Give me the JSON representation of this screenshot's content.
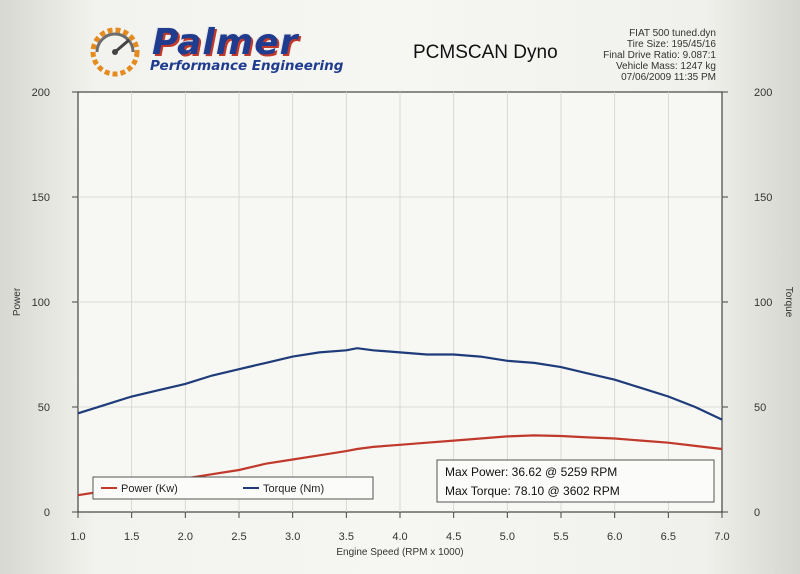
{
  "header": {
    "brand": "Palmer",
    "brand_subtitle": "Performance Engineering",
    "title": "PCMSCAN Dyno",
    "meta": [
      "FIAT 500 tuned.dyn",
      "Tire Size: 195/45/16",
      "Final Drive Ratio: 9.087:1",
      "Vehicle Mass: 1247 kg",
      "07/06/2009 11:35 PM"
    ]
  },
  "colors": {
    "power": "#c0392b",
    "torque": "#1f3c7a",
    "logo_orange": "#e58a1f",
    "brand_blue": "#1f3c8f"
  },
  "chart_data": {
    "type": "line",
    "title": "",
    "xlabel": "Engine Speed (RPM x 1000)",
    "ylabel": "Power",
    "y2label": "Torque",
    "xlim": [
      1.0,
      7.0
    ],
    "ylim": [
      0,
      200
    ],
    "y2lim": [
      0,
      200
    ],
    "x_ticks": [
      "1.0",
      "1.5",
      "2.0",
      "2.5",
      "3.0",
      "3.5",
      "4.0",
      "4.5",
      "5.0",
      "5.5",
      "6.0",
      "6.5",
      "7.0"
    ],
    "y_ticks": [
      "0",
      "50",
      "100",
      "150",
      "200"
    ],
    "grid": true,
    "legend": [
      {
        "label": "Power (Kw)",
        "series": "power"
      },
      {
        "label": "Torque (Nm)",
        "series": "torque"
      }
    ],
    "annotations": [
      "Max Power: 36.62 @ 5259 RPM",
      "Max Torque: 78.10 @ 3602 RPM"
    ],
    "x": [
      1.0,
      1.25,
      1.5,
      1.75,
      2.0,
      2.25,
      2.5,
      2.75,
      3.0,
      3.25,
      3.5,
      3.6,
      3.75,
      4.0,
      4.25,
      4.5,
      4.75,
      5.0,
      5.25,
      5.5,
      5.75,
      6.0,
      6.25,
      6.5,
      6.75,
      7.0
    ],
    "series": [
      {
        "name": "Power (Kw)",
        "key": "power",
        "values": [
          8,
          10,
          12,
          14,
          16,
          18,
          20,
          23,
          25,
          27,
          29,
          30,
          31,
          32,
          33,
          34,
          35,
          36,
          36.5,
          36.2,
          35.5,
          35,
          34,
          33,
          31.5,
          30
        ]
      },
      {
        "name": "Torque (Nm)",
        "key": "torque",
        "values": [
          47,
          51,
          55,
          58,
          61,
          65,
          68,
          71,
          74,
          76,
          77,
          78,
          77,
          76,
          75,
          75,
          74,
          72,
          71,
          69,
          66,
          63,
          59,
          55,
          50,
          44
        ]
      }
    ]
  }
}
